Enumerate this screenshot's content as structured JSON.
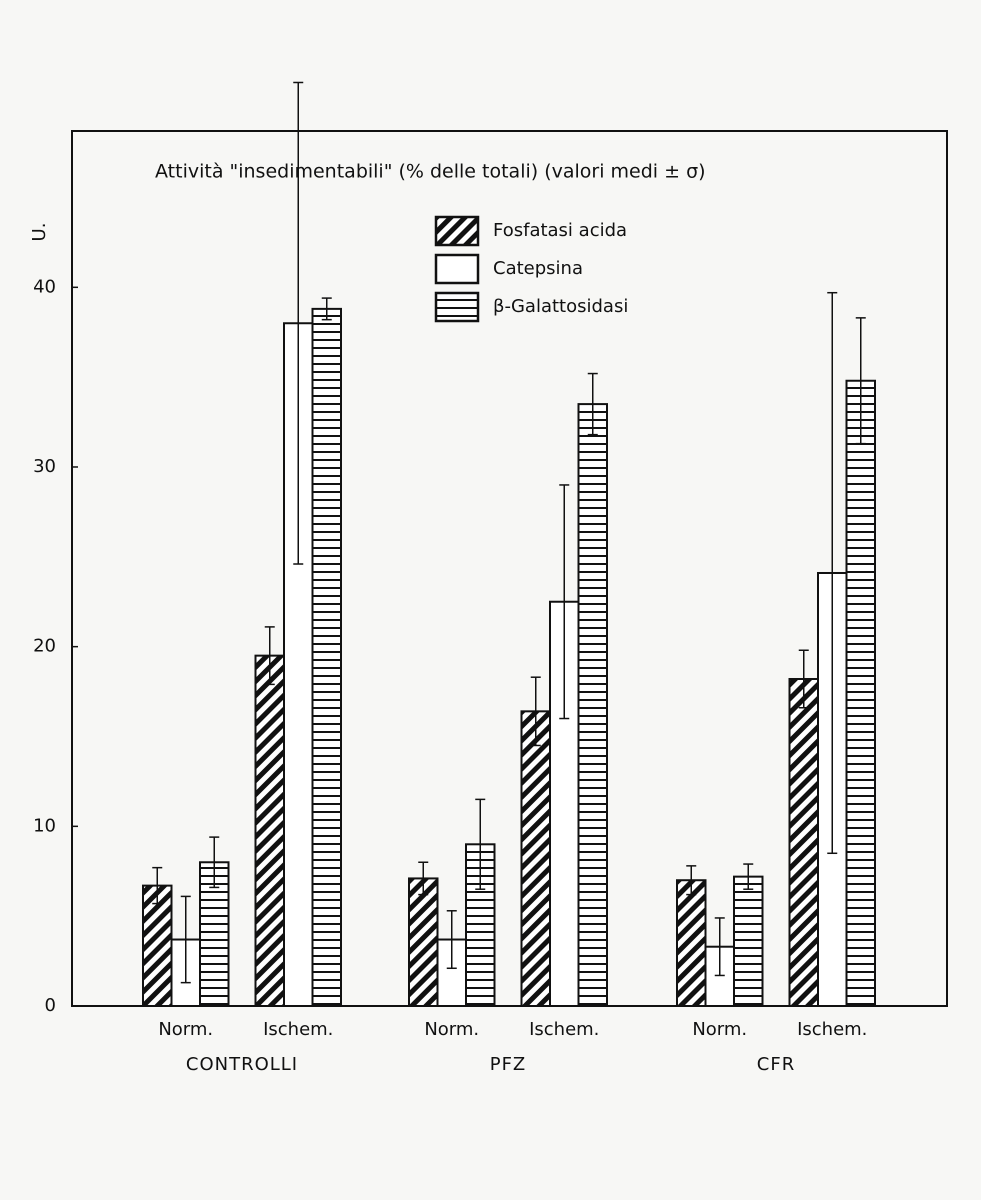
{
  "chart_data": {
    "type": "bar",
    "title": "Attività \"insedimentabili\" (% delle totali) (valori medi ± σ)",
    "y_label": "U.",
    "categories": [
      "Norm.",
      "Ischem.",
      "Norm.",
      "Ischem.",
      "Norm.",
      "Ischem."
    ],
    "groups": [
      "CONTROLLI",
      "PFZ",
      "CFR"
    ],
    "series": [
      {
        "name": "Fosfatasi acida",
        "color": "#111111",
        "pattern": "diagonal",
        "values": [
          6.7,
          19.5,
          7.1,
          16.4,
          7.0,
          18.2
        ],
        "errors": [
          1.0,
          1.6,
          0.9,
          1.9,
          0.8,
          1.6
        ]
      },
      {
        "name": "Catepsina",
        "color": "#111111",
        "pattern": "none",
        "values": [
          3.7,
          38.0,
          3.7,
          22.5,
          3.3,
          24.1
        ],
        "errors": [
          2.4,
          13.4,
          1.6,
          6.5,
          1.6,
          15.6
        ]
      },
      {
        "name": "β-Galattosidasi",
        "color": "#111111",
        "pattern": "horizontal",
        "values": [
          8.0,
          38.8,
          9.0,
          33.5,
          7.2,
          34.8
        ],
        "errors": [
          1.4,
          0.6,
          2.5,
          1.7,
          0.7,
          3.5
        ]
      }
    ],
    "ylim": [
      0,
      48.7
    ],
    "yticks": [
      0,
      10,
      20,
      30,
      40
    ],
    "grid": false,
    "legend": "top"
  }
}
